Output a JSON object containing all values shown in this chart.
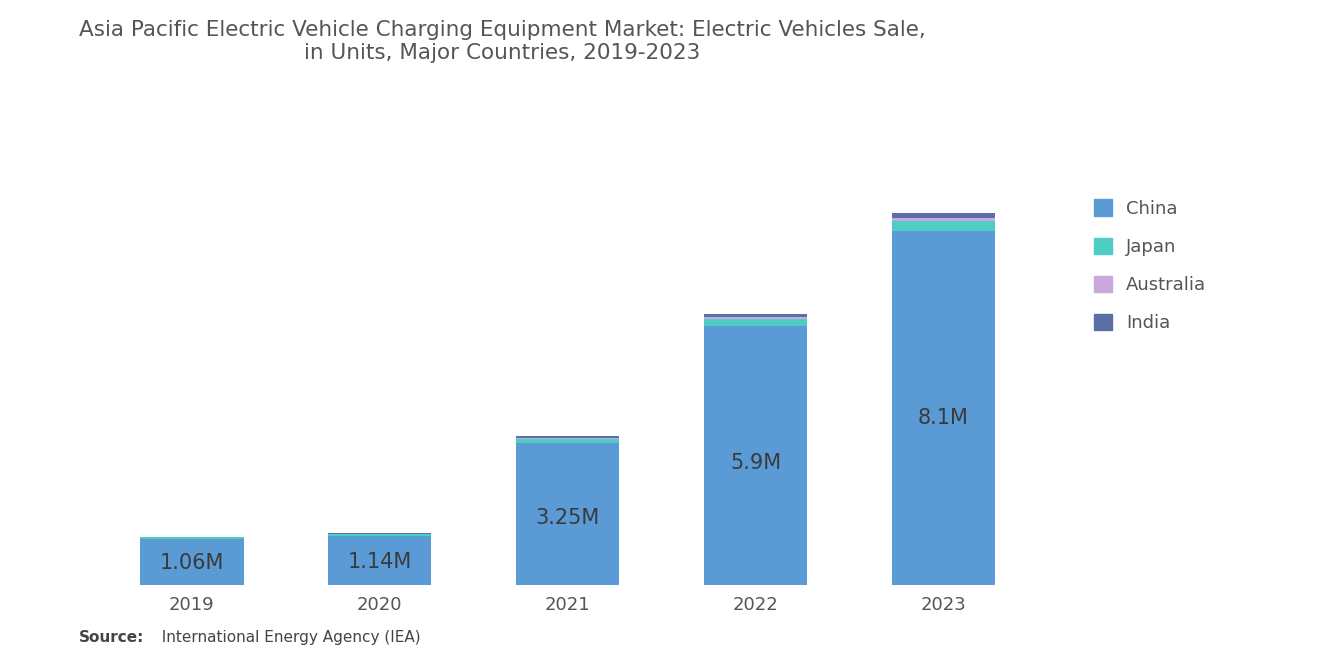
{
  "title": "Asia Pacific Electric Vehicle Charging Equipment Market: Electric Vehicles Sale,\nin Units, Major Countries, 2019-2023",
  "years": [
    "2019",
    "2020",
    "2021",
    "2022",
    "2023"
  ],
  "labels": [
    "1.06M",
    "1.14M",
    "3.25M",
    "5.9M",
    "8.1M"
  ],
  "totals_M": [
    1.06,
    1.14,
    3.25,
    5.9,
    8.1
  ],
  "china": [
    1.0,
    1.07,
    3.1,
    5.65,
    7.72
  ],
  "japan": [
    0.04,
    0.04,
    0.09,
    0.14,
    0.22
  ],
  "australia": [
    0.008,
    0.01,
    0.025,
    0.04,
    0.065
  ],
  "india": [
    0.012,
    0.02,
    0.035,
    0.07,
    0.095
  ],
  "color_china": "#5B9BD5",
  "color_japan": "#4ECDC4",
  "color_australia": "#C9A8E0",
  "color_india": "#5B6FA6",
  "background": "#FFFFFF",
  "source_bold": "Source:",
  "source_rest": "  International Energy Agency (IEA)",
  "legend_entries": [
    "China",
    "Japan",
    "Australia",
    "India"
  ],
  "title_fontsize": 15.5,
  "label_fontsize": 15,
  "tick_fontsize": 13,
  "legend_fontsize": 13
}
